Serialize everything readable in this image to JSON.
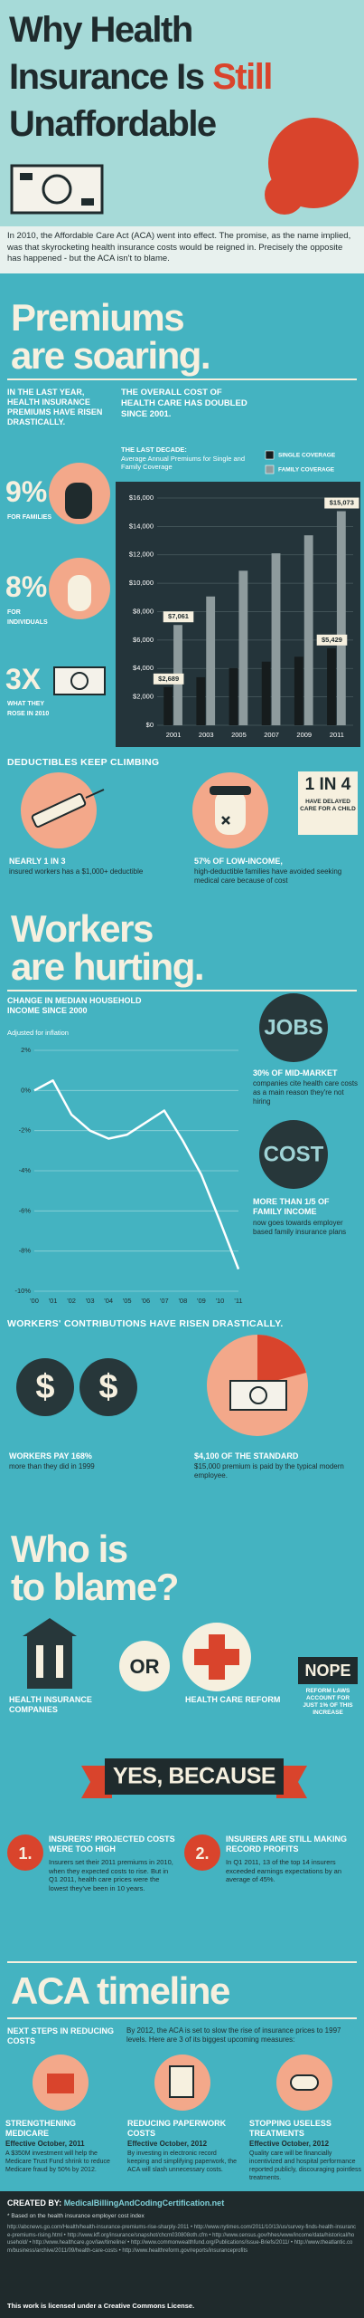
{
  "header": {
    "title": {
      "line1": "Why Health",
      "line2": "Insurance Is",
      "line2_accent": "Still",
      "line3": "Unaffordable"
    },
    "intro": "In 2010, the Affordable Care Act (ACA) went into effect. The promise, as the name implied, was that skyrocketing health insurance costs would be reigned in. Precisely the opposite has happened - but the ACA isn't to blame."
  },
  "premiums": {
    "heading_1": "Premiums",
    "heading_2": "are soaring.",
    "lead": "IN THE LAST YEAR, HEALTH INSURANCE PREMIUMS HAVE RISEN DRASTICALLY.",
    "stats": [
      {
        "figure": "9%",
        "label": "FOR FAMILIES"
      },
      {
        "figure": "8%",
        "label": "FOR INDIVIDUALS"
      },
      {
        "figure": "3X",
        "label": "WHAT THEY ROSE IN 2010"
      }
    ]
  },
  "chart_data": [
    {
      "type": "bar",
      "title": "THE OVERALL COST OF HEALTH CARE HAS DOUBLED SINCE 2001.",
      "subtitle_lead": "THE LAST DECADE:",
      "subtitle": "Average Annual Premiums for Single and Family Coverage",
      "categories": [
        "2001",
        "2003",
        "2005",
        "2007",
        "2009",
        "2011"
      ],
      "series": [
        {
          "name": "SINGLE COVERAGE",
          "color": "#161c1d",
          "values": [
            2689,
            3383,
            4024,
            4479,
            4824,
            5429
          ],
          "value_labels": [
            "$2,689",
            null,
            null,
            null,
            null,
            "$5,429"
          ]
        },
        {
          "name": "FAMILY COVERAGE",
          "color": "#8e9b9d",
          "values": [
            7061,
            9068,
            10880,
            12106,
            13375,
            15073
          ],
          "value_labels": [
            "$7,061",
            null,
            null,
            null,
            null,
            "$15,073"
          ]
        }
      ],
      "ylim": [
        0,
        16000
      ],
      "yticks": [
        {
          "value": 0,
          "label": "$0"
        },
        {
          "value": 2000,
          "label": "$2,000"
        },
        {
          "value": 4000,
          "label": "$4,000"
        },
        {
          "value": 6000,
          "label": "$6,000"
        },
        {
          "value": 8000,
          "label": "$8,000"
        },
        {
          "value": 10000,
          "label": "$10,000"
        },
        {
          "value": 12000,
          "label": "$12,000"
        },
        {
          "value": 14000,
          "label": "$14,000"
        },
        {
          "value": 16000,
          "label": "$16,000"
        }
      ],
      "grid": true,
      "legend": "top-right"
    },
    {
      "type": "line",
      "title": "CHANGE IN MEDIAN HOUSEHOLD INCOME SINCE 2000",
      "subtitle": "Adjusted for inflation",
      "categories": [
        "'00",
        "'01",
        "'02",
        "'03",
        "'04",
        "'05",
        "'06",
        "'07",
        "'08",
        "'09",
        "'10",
        "'11"
      ],
      "series": [
        {
          "color": "#ffffff",
          "values": [
            0,
            0.5,
            -1.2,
            -2.0,
            -2.4,
            -2.2,
            -1.6,
            -1.0,
            -2.5,
            -4.2,
            -6.5,
            -8.9
          ]
        }
      ],
      "ylim": [
        -10,
        2
      ],
      "yticks": [
        {
          "value": 2,
          "label": "2%"
        },
        {
          "value": 0,
          "label": "0%"
        },
        {
          "value": -2,
          "label": "-2%"
        },
        {
          "value": -4,
          "label": "-4%"
        },
        {
          "value": -6,
          "label": "-6%"
        },
        {
          "value": -8,
          "label": "-8%"
        },
        {
          "value": -10,
          "label": "-10%"
        }
      ],
      "grid": true
    }
  ],
  "deductibles": {
    "title": "DEDUCTIBLES KEEP CLIMBING",
    "left": {
      "highlight": "NEARLY 1 IN 3",
      "text": "insured workers has a $1,000+ deductible"
    },
    "badge": {
      "figure": "1 IN 4",
      "text": "HAVE DELAYED CARE FOR A CHILD"
    },
    "right": {
      "highlight": "57% OF LOW-INCOME,",
      "text": "high-deductible families have avoided seeking medical care because of cost"
    }
  },
  "workers": {
    "heading_1": "Workers",
    "heading_2": "are hurting.",
    "jobs": {
      "icon": "JOBS",
      "highlight": "30% OF MID-MARKET",
      "text": "companies cite health care costs as a main reason they're not hiring"
    },
    "cost": {
      "icon": "COST",
      "highlight": "MORE THAN 1/5 OF FAMILY INCOME",
      "text": "now goes towards employer based family insurance plans"
    }
  },
  "contributions": {
    "title": "WORKERS' CONTRIBUTIONS HAVE RISEN DRASTICALLY.",
    "coin_symbol": "$",
    "left": {
      "highlight": "WORKERS PAY 168%",
      "text": "more than they did in 1999"
    },
    "right": {
      "highlight": "$4,100 OF THE STANDARD",
      "text": "$15,000 premium is paid by the typical modern employee."
    }
  },
  "blame": {
    "heading_1": "Who is",
    "heading_2": "to blame?",
    "option_1": "HEALTH INSURANCE COMPANIES",
    "or": "OR",
    "option_2": "HEALTH CARE REFORM",
    "nope": "NOPE",
    "nope_text": "REFORM LAWS ACCOUNT FOR JUST 1% OF THIS INCREASE",
    "verdict": "YES, BECAUSE",
    "reasons": [
      {
        "number": "1.",
        "title": "INSURERS' PROJECTED COSTS WERE TOO HIGH",
        "text": "Insurers set their 2011 premiums in 2010, when they expected costs to rise. But in Q1 2011, health care prices were the lowest they've been in 10 years."
      },
      {
        "number": "2.",
        "title": "INSURERS ARE STILL MAKING RECORD PROFITS",
        "text": "In Q1 2011, 13 of the top 14 insurers exceeded earnings expectations by an average of 45%."
      }
    ]
  },
  "timeline": {
    "heading": "ACA timeline",
    "lead_title": "NEXT STEPS IN REDUCING COSTS",
    "lead_text": "By 2012, the ACA is set to slow the rise of insurance prices to 1997 levels. Here are 3 of its biggest upcoming measures:",
    "steps": [
      {
        "title": "STRENGTHENING MEDICARE",
        "effective": "Effective October, 2011",
        "text": "A $350M investment will help the Medicare Trust Fund shrink to reduce Medicare fraud by 50% by 2012."
      },
      {
        "title": "REDUCING PAPERWORK COSTS",
        "effective": "Effective October, 2012",
        "text": "By investing in electronic record keeping and simplifying paperwork, the ACA will slash unnecessary costs."
      },
      {
        "title": "STOPPING USELESS TREATMENTS",
        "effective": "Effective October, 2012",
        "text": "Quality care will be financially incentivized and hospital performance reported publicly, discouraging pointless treatments."
      }
    ]
  },
  "footer": {
    "created_by_label": "CREATED BY:",
    "created_by": "MedicalBillingAndCodingCertification.net",
    "note": "* Based on the health insurance employer cost index",
    "sources": "http://abcnews.go.com/Health/health-insurance-premiums-rise-sharply-2011 • http://www.nytimes.com/2011/10/13/us/survey-finds-health-insurance-premiums-rising.html • http://www.kff.org/insurance/snapshot/chcm030808oth.cfm • http://www.census.gov/hhes/www/income/data/historical/household/ • http://www.healthcare.gov/law/timeline/ • http://www.commonwealthfund.org/Publications/Issue-Briefs/2011/ • http://www.theatlantic.com/business/archive/2011/09/health-care-costs • http://www.healthreform.gov/reports/insuranceprofits",
    "license": "This work is licensed under a Creative Commons License."
  }
}
